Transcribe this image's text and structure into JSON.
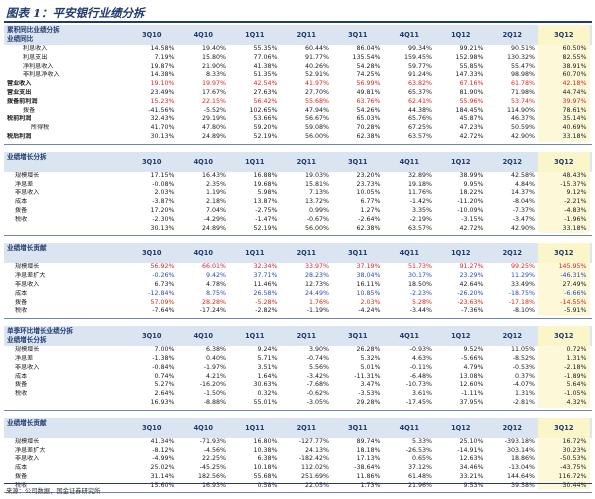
{
  "caption": "图表 1：平安银行业绩分拆",
  "columns": [
    "3Q10",
    "4Q10",
    "1Q11",
    "2Q11",
    "3Q11",
    "4Q11",
    "1Q12",
    "2Q12",
    "3Q12"
  ],
  "source": "来源：公司数据，国金证券研究所",
  "blocks": [
    {
      "header": [
        "累积同比业绩分拆",
        "业绩同比"
      ],
      "rows": [
        {
          "label": "利息收入",
          "indent": 4,
          "values": [
            "14.58%",
            "19.40%",
            "55.35%",
            "60.44%",
            "86.04%",
            "99.34%",
            "99.21%",
            "90.51%",
            "60.50%"
          ]
        },
        {
          "label": "利息支出",
          "indent": 4,
          "values": [
            "7.19%",
            "15.80%",
            "77.06%",
            "91.77%",
            "135.54%",
            "159.45%",
            "152.98%",
            "130.32%",
            "82.55%"
          ]
        },
        {
          "label": "净利息收入",
          "indent": 4,
          "values": [
            "19.87%",
            "21.90%",
            "41.38%",
            "40.26%",
            "54.28%",
            "59.77%",
            "55.85%",
            "55.47%",
            "38.91%"
          ]
        },
        {
          "label": "非利息净收入",
          "indent": 4,
          "values": [
            "14.38%",
            "8.33%",
            "51.35%",
            "52.91%",
            "74.25%",
            "91.24%",
            "147.33%",
            "98.98%",
            "60.70%"
          ]
        },
        {
          "label": "营业收入",
          "indent": 0,
          "bold": true,
          "color": "red",
          "values": [
            "19.10%",
            "19.97%",
            "42.54%",
            "41.97%",
            "56.99%",
            "63.82%",
            "67.16%",
            "61.78%",
            "42.18%"
          ]
        },
        {
          "label": "营业支出",
          "indent": 0,
          "bold": true,
          "values": [
            "23.49%",
            "17.67%",
            "27.63%",
            "27.70%",
            "49.81%",
            "65.37%",
            "81.90%",
            "71.98%",
            "44.74%"
          ]
        },
        {
          "label": "拨备前利润",
          "indent": 0,
          "bold": true,
          "color": "red",
          "values": [
            "15.23%",
            "22.15%",
            "56.42%",
            "55.68%",
            "63.76%",
            "62.41%",
            "55.96%",
            "53.74%",
            "39.97%"
          ]
        },
        {
          "label": "拨备",
          "indent": 4,
          "values": [
            "-41.56%",
            "-5.52%",
            "102.65%",
            "47.94%",
            "54.26%",
            "44.38%",
            "184.45%",
            "114.90%",
            "78.61%"
          ]
        },
        {
          "label": "税前利润",
          "indent": 0,
          "bold": true,
          "values": [
            "32.43%",
            "29.19%",
            "53.66%",
            "56.67%",
            "65.03%",
            "65.76%",
            "45.87%",
            "46.37%",
            "35.14%"
          ]
        },
        {
          "label": "所得税",
          "indent": 6,
          "values": [
            "41.70%",
            "47.80%",
            "59.20%",
            "59.08%",
            "70.28%",
            "67.25%",
            "47.23%",
            "50.59%",
            "40.69%"
          ]
        },
        {
          "label": "税后利润",
          "indent": 0,
          "bold": true,
          "values": [
            "30.13%",
            "24.89%",
            "52.19%",
            "56.00%",
            "62.38%",
            "63.57%",
            "42.72%",
            "42.90%",
            "33.18%"
          ]
        }
      ]
    },
    {
      "header": [
        "业绩增长分拆"
      ],
      "rows": [
        {
          "label": "规模增长",
          "indent": 2,
          "values": [
            "17.15%",
            "16.43%",
            "16.88%",
            "19.03%",
            "23.20%",
            "32.89%",
            "38.99%",
            "42.58%",
            "48.43%"
          ]
        },
        {
          "label": "净息差",
          "indent": 2,
          "values": [
            "-0.08%",
            "2.35%",
            "19.68%",
            "15.81%",
            "23.73%",
            "19.18%",
            "9.95%",
            "4.84%",
            "-15.37%"
          ]
        },
        {
          "label": "非息收入",
          "indent": 2,
          "values": [
            "2.03%",
            "1.19%",
            "5.98%",
            "7.13%",
            "10.05%",
            "11.76%",
            "18.22%",
            "14.37%",
            "9.12%"
          ]
        },
        {
          "label": "成本",
          "indent": 2,
          "values": [
            "-3.87%",
            "2.18%",
            "13.87%",
            "13.72%",
            "6.77%",
            "-1.42%",
            "-11.20%",
            "-8.04%",
            "-2.21%"
          ]
        },
        {
          "label": "拨备",
          "indent": 2,
          "values": [
            "17.20%",
            "7.04%",
            "-2.75%",
            "0.99%",
            "1.27%",
            "3.35%",
            "-10.09%",
            "-7.37%",
            "-4.83%"
          ]
        },
        {
          "label": "税收",
          "indent": 2,
          "values": [
            "-2.30%",
            "-4.29%",
            "-1.47%",
            "-0.67%",
            "-2.64%",
            "-2.19%",
            "-3.15%",
            "-3.47%",
            "-1.96%"
          ]
        },
        {
          "label": "",
          "indent": 0,
          "values": [
            "30.13%",
            "24.89%",
            "52.19%",
            "56.00%",
            "62.38%",
            "63.57%",
            "42.72%",
            "42.90%",
            "33.18%"
          ]
        }
      ]
    },
    {
      "header": [
        "业绩增长贡献"
      ],
      "rows": [
        {
          "label": "规模增长",
          "indent": 2,
          "color": "red",
          "values": [
            "56.92%",
            "66.01%",
            "32.34%",
            "33.97%",
            "37.19%",
            "51.73%",
            "91.27%",
            "99.25%",
            "145.95%"
          ]
        },
        {
          "label": "净息差扩大",
          "indent": 2,
          "color": "blue",
          "values": [
            "-0.26%",
            "9.42%",
            "37.71%",
            "28.23%",
            "38.04%",
            "30.17%",
            "23.29%",
            "11.29%",
            "-46.31%"
          ]
        },
        {
          "label": "非息收入",
          "indent": 2,
          "values": [
            "6.73%",
            "4.78%",
            "11.46%",
            "12.73%",
            "16.11%",
            "18.50%",
            "42.64%",
            "33.49%",
            "27.49%"
          ]
        },
        {
          "label": "成本",
          "indent": 2,
          "color": "blue",
          "values": [
            "-12.84%",
            "8.75%",
            "26.58%",
            "24.49%",
            "10.85%",
            "-2.23%",
            "-26.20%",
            "-18.75%",
            "-6.66%"
          ]
        },
        {
          "label": "拨备",
          "indent": 2,
          "color": "red",
          "values": [
            "57.09%",
            "28.28%",
            "-5.28%",
            "1.76%",
            "2.03%",
            "5.28%",
            "-23.63%",
            "-17.18%",
            "-14.55%"
          ]
        },
        {
          "label": "税收",
          "indent": 2,
          "values": [
            "-7.64%",
            "-17.24%",
            "-2.82%",
            "-1.19%",
            "-4.24%",
            "-3.44%",
            "-7.36%",
            "-8.10%",
            "-5.91%"
          ]
        }
      ]
    },
    {
      "header": [
        "单季环比增长业绩分拆",
        "业绩增长分拆"
      ],
      "rows": [
        {
          "label": "规模增长",
          "indent": 2,
          "values": [
            "7.00%",
            "6.38%",
            "9.24%",
            "3.90%",
            "26.28%",
            "-0.93%",
            "9.52%",
            "11.05%",
            "0.72%"
          ]
        },
        {
          "label": "净息差",
          "indent": 2,
          "values": [
            "-1.38%",
            "0.40%",
            "5.71%",
            "-0.74%",
            "5.32%",
            "4.63%",
            "-5.66%",
            "-8.52%",
            "1.31%"
          ]
        },
        {
          "label": "非息收入",
          "indent": 2,
          "values": [
            "-0.84%",
            "-1.97%",
            "3.51%",
            "5.56%",
            "5.01%",
            "-0.11%",
            "4.79%",
            "-0.53%",
            "-2.18%"
          ]
        },
        {
          "label": "成本",
          "indent": 2,
          "values": [
            "0.74%",
            "4.21%",
            "1.64%",
            "-3.42%",
            "-11.31%",
            "-6.48%",
            "13.08%",
            "0.37%",
            "-1.89%"
          ]
        },
        {
          "label": "拨备",
          "indent": 2,
          "values": [
            "5.27%",
            "-16.20%",
            "30.63%",
            "-7.68%",
            "3.47%",
            "-10.73%",
            "12.60%",
            "-4.07%",
            "5.64%"
          ]
        },
        {
          "label": "税收",
          "indent": 2,
          "values": [
            "2.64%",
            "-1.50%",
            "0.32%",
            "-0.62%",
            "-3.53%",
            "3.61%",
            "-1.11%",
            "1.31%",
            "-1.05%"
          ]
        },
        {
          "label": "",
          "indent": 0,
          "values": [
            "16.93%",
            "-8.88%",
            "55.01%",
            "-3.05%",
            "29.28%",
            "-17.45%",
            "37.95%",
            "-2.81%",
            "4.32%"
          ]
        }
      ]
    },
    {
      "header": [
        "业绩增长贡献"
      ],
      "rows": [
        {
          "label": "规模增长",
          "indent": 2,
          "values": [
            "41.34%",
            "-71.93%",
            "16.80%",
            "-127.77%",
            "89.74%",
            "5.33%",
            "25.10%",
            "-393.18%",
            "16.72%"
          ]
        },
        {
          "label": "净息差扩大",
          "indent": 2,
          "values": [
            "-8.12%",
            "-4.56%",
            "10.38%",
            "24.13%",
            "18.18%",
            "-26.53%",
            "-14.91%",
            "303.14%",
            "30.23%"
          ]
        },
        {
          "label": "非息收入",
          "indent": 2,
          "values": [
            "-4.99%",
            "22.25%",
            "6.38%",
            "-182.42%",
            "17.13%",
            "0.65%",
            "12.63%",
            "18.86%",
            "-50.53%"
          ]
        },
        {
          "label": "成本",
          "indent": 2,
          "values": [
            "25.02%",
            "-45.25%",
            "10.18%",
            "112.02%",
            "-38.64%",
            "37.12%",
            "34.46%",
            "-13.04%",
            "-43.75%"
          ]
        },
        {
          "label": "拨备",
          "indent": 2,
          "values": [
            "31.14%",
            "182.56%",
            "55.68%",
            "251.69%",
            "11.86%",
            "61.48%",
            "33.21%",
            "144.64%",
            "116.72%"
          ]
        },
        {
          "label": "税收",
          "indent": 2,
          "values": [
            "15.60%",
            "16.93%",
            "0.58%",
            "22.05%",
            "1.73%",
            "21.96%",
            "9.53%",
            "39.58%",
            "30.44%"
          ]
        }
      ]
    }
  ]
}
